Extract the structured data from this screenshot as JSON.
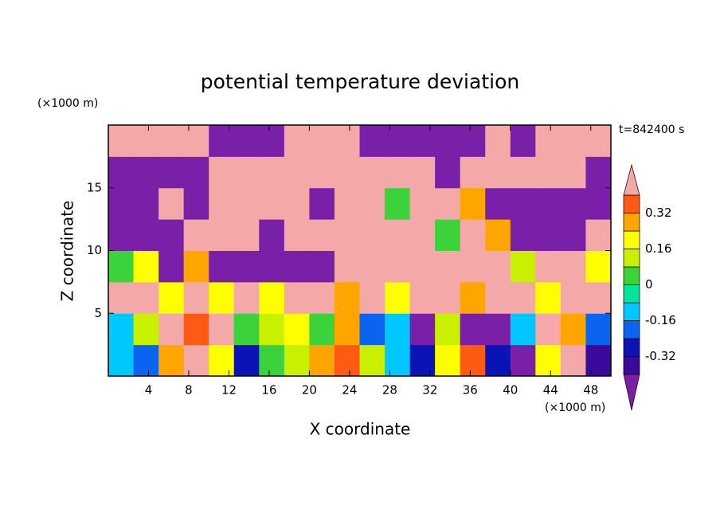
{
  "chart_data": {
    "type": "contour",
    "title": "potential temperature deviation",
    "xlabel": "X coordinate",
    "ylabel": "Z coordinate",
    "x_unit": "(×1000 m)",
    "y_unit": "(×1000 m)",
    "annotation": "t=842400 s",
    "xlim": [
      0,
      50
    ],
    "ylim": [
      0,
      20
    ],
    "xticks": [
      4,
      8,
      12,
      16,
      20,
      24,
      28,
      32,
      36,
      40,
      44,
      48
    ],
    "yticks": [
      5,
      10,
      15
    ],
    "x": [
      1.25,
      3.75,
      6.25,
      8.75,
      11.25,
      13.75,
      16.25,
      18.75,
      21.25,
      23.75,
      26.25,
      28.75,
      31.25,
      33.75,
      36.25,
      38.75,
      41.25,
      43.75,
      46.25,
      48.75
    ],
    "y": [
      1.25,
      3.75,
      6.25,
      8.75,
      11.25,
      13.75,
      16.25,
      18.75
    ],
    "z": [
      [
        -0.1,
        -0.2,
        0.3,
        0.45,
        0.2,
        -0.3,
        0.0,
        0.1,
        0.3,
        0.35,
        0.1,
        -0.1,
        -0.3,
        0.2,
        0.35,
        -0.3,
        -0.45,
        0.2,
        0.45,
        -0.35
      ],
      [
        -0.15,
        0.1,
        0.4,
        0.35,
        0.45,
        0.05,
        0.1,
        0.2,
        0.0,
        0.25,
        -0.2,
        -0.15,
        -0.45,
        0.15,
        -0.45,
        -0.45,
        -0.1,
        0.45,
        0.3,
        -0.2
      ],
      [
        0.45,
        0.45,
        0.2,
        0.45,
        0.2,
        0.45,
        0.2,
        0.45,
        0.45,
        0.3,
        0.45,
        0.2,
        0.45,
        0.45,
        0.3,
        0.45,
        0.45,
        0.2,
        0.45,
        0.45
      ],
      [
        0.0,
        0.2,
        -0.45,
        0.3,
        -0.45,
        -0.45,
        -0.45,
        -0.45,
        -0.45,
        0.45,
        0.45,
        0.45,
        0.45,
        0.45,
        0.45,
        0.45,
        0.1,
        0.45,
        0.45,
        0.2
      ],
      [
        -0.45,
        -0.45,
        -0.45,
        0.45,
        0.45,
        0.45,
        -0.45,
        0.45,
        0.45,
        0.45,
        0.45,
        0.45,
        0.45,
        0.0,
        0.45,
        0.3,
        -0.45,
        -0.45,
        -0.45,
        0.45
      ],
      [
        -0.45,
        -0.45,
        0.45,
        -0.45,
        0.45,
        0.45,
        0.45,
        0.45,
        -0.45,
        0.45,
        0.45,
        0.0,
        0.45,
        0.45,
        0.3,
        -0.45,
        -0.45,
        -0.45,
        -0.45,
        -0.45
      ],
      [
        -0.45,
        -0.45,
        -0.45,
        -0.45,
        0.45,
        0.45,
        0.45,
        0.45,
        0.45,
        0.45,
        0.45,
        0.45,
        0.45,
        -0.45,
        0.45,
        0.45,
        0.45,
        0.45,
        0.45,
        -0.45
      ],
      [
        0.45,
        0.45,
        0.45,
        0.45,
        -0.45,
        -0.45,
        -0.45,
        0.45,
        0.45,
        0.45,
        -0.45,
        -0.45,
        -0.45,
        -0.45,
        -0.45,
        0.45,
        -0.45,
        0.45,
        0.45,
        0.45
      ]
    ],
    "levels": [
      -0.4,
      -0.32,
      -0.24,
      -0.16,
      -0.08,
      0,
      0.08,
      0.16,
      0.24,
      0.32,
      0.4
    ],
    "colors": [
      "#7a1fa8",
      "#3a0a9a",
      "#0a14b4",
      "#0a64f0",
      "#00c8ff",
      "#00e69a",
      "#3cd23c",
      "#c8f000",
      "#ffff00",
      "#ffa500",
      "#ff5a14",
      "#f4a9a8"
    ],
    "cticks": [
      -0.32,
      -0.16,
      0,
      0.16,
      0.32
    ]
  }
}
